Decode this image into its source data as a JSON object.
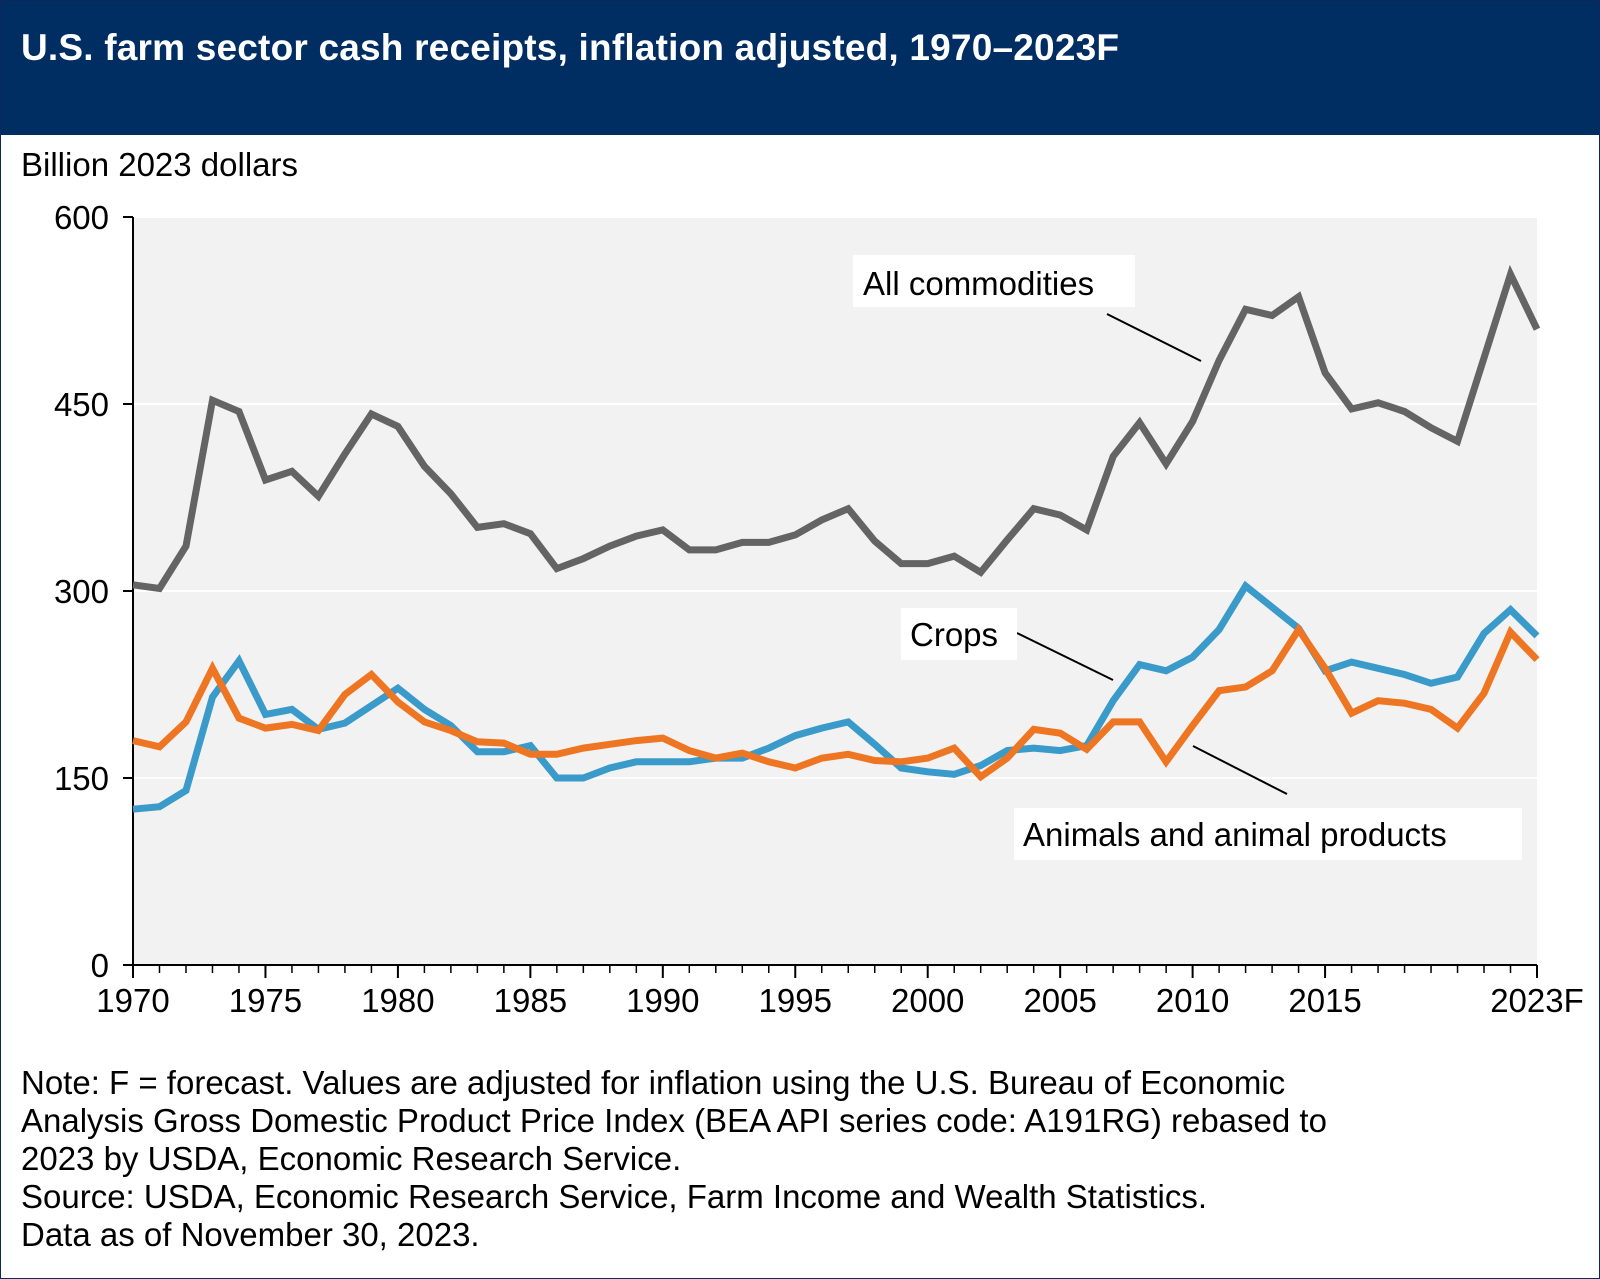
{
  "title": "U.S. farm sector cash receipts, inflation adjusted, 1970–2023F",
  "y_unit_label": "Billion 2023 dollars",
  "notes": [
    "Note: F = forecast. Values are adjusted for inflation using the U.S. Bureau of Economic",
    "Analysis Gross Domestic Product Price Index (BEA API series code: A191RG) rebased to",
    "2023 by USDA, Economic Research Service.",
    "Source: USDA, Economic Research Service, Farm Income and Wealth Statistics.",
    "Data as of November 30, 2023."
  ],
  "colors": {
    "banner": "#002e62",
    "plot_background": "#f2f2f2",
    "all_commodities": "#646464",
    "crops": "#3a9ac9",
    "animals": "#ee7623"
  },
  "chart_data": {
    "type": "line",
    "ylabel": "Billion 2023 dollars",
    "ylim": [
      0,
      600
    ],
    "yticks": [
      0,
      150,
      300,
      450,
      600
    ],
    "xlim": [
      1970,
      2023
    ],
    "xticks": [
      {
        "value": 1970,
        "label": "1970"
      },
      {
        "value": 1975,
        "label": "1975"
      },
      {
        "value": 1980,
        "label": "1980"
      },
      {
        "value": 1985,
        "label": "1985"
      },
      {
        "value": 1990,
        "label": "1990"
      },
      {
        "value": 1995,
        "label": "1995"
      },
      {
        "value": 2000,
        "label": "2000"
      },
      {
        "value": 2005,
        "label": "2005"
      },
      {
        "value": 2010,
        "label": "2010"
      },
      {
        "value": 2015,
        "label": "2015"
      },
      {
        "value": 2023,
        "label": "2023F"
      }
    ],
    "grid": "horizontal",
    "x": [
      1970,
      1971,
      1972,
      1973,
      1974,
      1975,
      1976,
      1977,
      1978,
      1979,
      1980,
      1981,
      1982,
      1983,
      1984,
      1985,
      1986,
      1987,
      1988,
      1989,
      1990,
      1991,
      1992,
      1993,
      1994,
      1995,
      1996,
      1997,
      1998,
      1999,
      2000,
      2001,
      2002,
      2003,
      2004,
      2005,
      2006,
      2007,
      2008,
      2009,
      2010,
      2011,
      2012,
      2013,
      2014,
      2015,
      2016,
      2017,
      2018,
      2019,
      2020,
      2021,
      2022,
      2023
    ],
    "series": [
      {
        "name": "All commodities",
        "color_key": "all_commodities",
        "values": [
          305,
          302,
          336,
          453,
          444,
          389,
          396,
          376,
          410,
          442,
          432,
          400,
          378,
          351,
          354,
          346,
          318,
          326,
          336,
          344,
          349,
          333,
          333,
          339,
          339,
          345,
          357,
          366,
          340,
          322,
          322,
          328,
          315,
          341,
          366,
          361,
          349,
          408,
          435,
          402,
          436,
          485,
          526,
          521,
          536,
          475,
          446,
          451,
          444,
          431,
          420,
          487,
          554,
          510
        ]
      },
      {
        "name": "Crops",
        "color_key": "crops",
        "values": [
          125,
          127,
          140,
          215,
          244,
          201,
          205,
          189,
          194,
          208,
          222,
          205,
          192,
          171,
          171,
          176,
          150,
          150,
          158,
          163,
          163,
          163,
          166,
          166,
          174,
          184,
          190,
          195,
          177,
          158,
          155,
          153,
          160,
          172,
          174,
          172,
          176,
          212,
          241,
          236,
          247,
          269,
          304,
          287,
          270,
          236,
          243,
          238,
          233,
          226,
          231,
          266,
          285,
          264
        ]
      },
      {
        "name": "Animals and animal products",
        "color_key": "animals",
        "values": [
          180,
          175,
          195,
          238,
          198,
          190,
          193,
          188,
          217,
          233,
          211,
          195,
          188,
          179,
          178,
          169,
          169,
          174,
          177,
          180,
          182,
          172,
          166,
          170,
          163,
          158,
          166,
          169,
          164,
          163,
          166,
          174,
          151,
          166,
          189,
          186,
          173,
          195,
          195,
          163,
          192,
          220,
          223,
          236,
          269,
          238,
          202,
          212,
          210,
          205,
          190,
          218,
          267,
          245
        ]
      }
    ],
    "annotations": [
      {
        "text": "All commodities",
        "series": "All commodities"
      },
      {
        "text": "Crops",
        "series": "Crops"
      },
      {
        "text": "Animals and animal products",
        "series": "Animals and animal products"
      }
    ]
  }
}
